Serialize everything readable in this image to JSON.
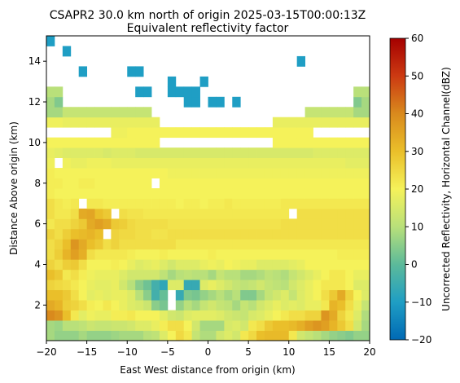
{
  "chart_data": {
    "type": "heatmap",
    "title": "CSAPR2 30.0 km north of origin 2025-03-15T00:00:13Z",
    "subtitle": "Equivalent reflectivity factor",
    "xlabel": "East West distance from origin (km)",
    "ylabel": "Distance Above origin (km)",
    "xlim": [
      -20,
      20
    ],
    "ylim": [
      0.25,
      15.25
    ],
    "xticks": [
      -20,
      -15,
      -10,
      -5,
      0,
      5,
      10,
      15,
      20
    ],
    "yticks": [
      2,
      4,
      6,
      8,
      10,
      12,
      14
    ],
    "grid": false,
    "colorbar": {
      "label": "Uncorrected Reflectivity, Horizontal Channel(dBZ)",
      "range": [
        -20,
        60
      ],
      "ticks": [
        -20,
        -10,
        0,
        10,
        20,
        30,
        40,
        50,
        60
      ],
      "colormap": "HomeyerRainbow"
    },
    "x_cell_km": 1,
    "y_levels_km": [
      0.5,
      1,
      1.5,
      2,
      2.5,
      3,
      3.5,
      4,
      4.5,
      5,
      5.5,
      6,
      6.5,
      7,
      7.5,
      8,
      8.5,
      9,
      9.5,
      10,
      10.5,
      11,
      11.5,
      12,
      12.5,
      13,
      13.5,
      14,
      14.5,
      15
    ],
    "columns_x_km": [
      -19.5,
      -18.5,
      -17.5,
      -16.5,
      -15.5,
      -14.5,
      -13.5,
      -12.5,
      -11.5,
      -10.5,
      -9.5,
      -8.5,
      -7.5,
      -6.5,
      -5.5,
      -4.5,
      -3.5,
      -2.5,
      -1.5,
      -0.5,
      0.5,
      1.5,
      2.5,
      3.5,
      4.5,
      5.5,
      6.5,
      7.5,
      8.5,
      9.5,
      10.5,
      11.5,
      12.5,
      13.5,
      14.5,
      15.5,
      16.5,
      17.5,
      18.5,
      19.5
    ],
    "reflectivity_dbz_by_height": [
      [
        8,
        6,
        6,
        6,
        8,
        6,
        6,
        6,
        7,
        8,
        8,
        8,
        10,
        11,
        16,
        20,
        25,
        22,
        12,
        9,
        9,
        14,
        16,
        14,
        22,
        25,
        30,
        31,
        31,
        31,
        22,
        14,
        12,
        10,
        8,
        6,
        5,
        4,
        6,
        6
      ],
      [
        8,
        7,
        10,
        10,
        11,
        13,
        12,
        12,
        13,
        13,
        14,
        16,
        16,
        18,
        21,
        24,
        24,
        20,
        14,
        8,
        8,
        8,
        15,
        16,
        14,
        22,
        24,
        28,
        30,
        30,
        31,
        33,
        36,
        38,
        36,
        32,
        28,
        24,
        14,
        8
      ],
      [
        40,
        38,
        30,
        22,
        17,
        19,
        18,
        18,
        21,
        21,
        22,
        20,
        20,
        20,
        17,
        14,
        13,
        16,
        17,
        17,
        17,
        16,
        14,
        13,
        12,
        15,
        16,
        18,
        20,
        22,
        24,
        24,
        26,
        26,
        38,
        34,
        26,
        22,
        16,
        9
      ],
      [
        34,
        32,
        27,
        26,
        24,
        21,
        20,
        22,
        20,
        18,
        16,
        15,
        13,
        5,
        3,
        null,
        6,
        10,
        8,
        12,
        14,
        12,
        11,
        8,
        12,
        10,
        14,
        16,
        18,
        16,
        17,
        16,
        18,
        18,
        22,
        32,
        30,
        24,
        18,
        12
      ],
      [
        30,
        30,
        28,
        24,
        20,
        17,
        18,
        17,
        18,
        18,
        16,
        10,
        5,
        -4,
        1,
        null,
        -6,
        4,
        3,
        6,
        8,
        10,
        8,
        10,
        4,
        4,
        8,
        12,
        14,
        16,
        12,
        16,
        18,
        20,
        24,
        28,
        34,
        26,
        20,
        16
      ],
      [
        26,
        25,
        24,
        22,
        20,
        18,
        17,
        17,
        18,
        14,
        10,
        5,
        2,
        -4,
        -7,
        16,
        16,
        -6,
        -6,
        16,
        18,
        16,
        14,
        12,
        11,
        12,
        14,
        12,
        11,
        10,
        14,
        16,
        18,
        20,
        22,
        22,
        22,
        20,
        16,
        16
      ],
      [
        30,
        28,
        22,
        24,
        21,
        19,
        18,
        18,
        18,
        16,
        14,
        14,
        14,
        14,
        11,
        8,
        10,
        11,
        10,
        10,
        8,
        12,
        10,
        10,
        8,
        8,
        9,
        11,
        10,
        9,
        12,
        14,
        16,
        18,
        20,
        22,
        22,
        20,
        18,
        18
      ],
      [
        26,
        24,
        27,
        28,
        24,
        20,
        20,
        20,
        21,
        20,
        18,
        16,
        17,
        18,
        16,
        14,
        16,
        16,
        16,
        18,
        19,
        18,
        20,
        19,
        18,
        18,
        16,
        16,
        16,
        16,
        17,
        18,
        20,
        20,
        20,
        20,
        20,
        20,
        20,
        20
      ],
      [
        24,
        27,
        32,
        36,
        33,
        24,
        22,
        22,
        22,
        22,
        21,
        20,
        20,
        20,
        21,
        20,
        20,
        20,
        20,
        20,
        21,
        20,
        20,
        20,
        20,
        20,
        20,
        20,
        20,
        20,
        20,
        20,
        20,
        20,
        20,
        20,
        21,
        21,
        21,
        21
      ],
      [
        24,
        26,
        30,
        38,
        34,
        30,
        28,
        24,
        26,
        24,
        24,
        24,
        24,
        24,
        24,
        24,
        22,
        22,
        22,
        22,
        22,
        22,
        22,
        22,
        22,
        22,
        22,
        22,
        22,
        22,
        22,
        22,
        22,
        22,
        22,
        22,
        22,
        22,
        22,
        22
      ],
      [
        26,
        24,
        27,
        30,
        31,
        32,
        30,
        null,
        26,
        25,
        25,
        24,
        24,
        23,
        23,
        24,
        24,
        24,
        24,
        24,
        24,
        24,
        24,
        24,
        24,
        24,
        24,
        24,
        24,
        24,
        24,
        24,
        24,
        24,
        24,
        24,
        24,
        24,
        24,
        24
      ],
      [
        22,
        24,
        24,
        26,
        28,
        34,
        36,
        34,
        28,
        27,
        25,
        24,
        24,
        24,
        24,
        23,
        23,
        23,
        23,
        23,
        23,
        23,
        23,
        23,
        23,
        23,
        23,
        23,
        23,
        24,
        24,
        24,
        24,
        24,
        24,
        24,
        24,
        24,
        24,
        24
      ],
      [
        24,
        22,
        22,
        24,
        34,
        35,
        30,
        28,
        null,
        24,
        23,
        23,
        22,
        22,
        22,
        22,
        22,
        22,
        22,
        22,
        22,
        22,
        22,
        22,
        22,
        22,
        22,
        22,
        22,
        22,
        null,
        24,
        24,
        24,
        24,
        24,
        24,
        24,
        24,
        24
      ],
      [
        24,
        22,
        21,
        22,
        null,
        22,
        22,
        21,
        21,
        21,
        21,
        21,
        21,
        21,
        21,
        21,
        20,
        21,
        21,
        20,
        21,
        21,
        22,
        21,
        21,
        21,
        21,
        21,
        21,
        22,
        22,
        22,
        22,
        22,
        22,
        22,
        22,
        22,
        22,
        22
      ],
      [
        21,
        20,
        20,
        20,
        20,
        20,
        20,
        20,
        20,
        20,
        20,
        20,
        20,
        20,
        20,
        20,
        20,
        20,
        20,
        20,
        20,
        20,
        20,
        20,
        20,
        20,
        20,
        20,
        20,
        20,
        20,
        20,
        20,
        20,
        20,
        20,
        20,
        20,
        20,
        20
      ],
      [
        21,
        21,
        20,
        20,
        21,
        21,
        20,
        20,
        20,
        20,
        20,
        20,
        20,
        null,
        20,
        20,
        20,
        20,
        20,
        20,
        20,
        20,
        20,
        20,
        20,
        20,
        20,
        20,
        20,
        20,
        20,
        20,
        20,
        20,
        20,
        20,
        20,
        20,
        20,
        20
      ],
      [
        21,
        20,
        20,
        20,
        20,
        20,
        20,
        20,
        20,
        20,
        20,
        20,
        20,
        20,
        20,
        19,
        19,
        19,
        19,
        19,
        19,
        19,
        19,
        19,
        19,
        19,
        19,
        19,
        19,
        19,
        19,
        19,
        19,
        19,
        19,
        19,
        19,
        19,
        19,
        19
      ],
      [
        19,
        null,
        19,
        18,
        18,
        19,
        19,
        19,
        18,
        18,
        18,
        18,
        18,
        18,
        18,
        18,
        18,
        18,
        18,
        18,
        18,
        18,
        18,
        18,
        18,
        18,
        18,
        18,
        18,
        18,
        18,
        18,
        18,
        18,
        18,
        18,
        18,
        17,
        17,
        17
      ],
      [
        18,
        17,
        16,
        16,
        16,
        16,
        16,
        15,
        16,
        16,
        16,
        15,
        15,
        15,
        15,
        15,
        15,
        15,
        15,
        15,
        15,
        15,
        15,
        15,
        15,
        15,
        15,
        15,
        15,
        15,
        15,
        15,
        15,
        16,
        16,
        16,
        16,
        16,
        16,
        16
      ],
      [
        20,
        20,
        20,
        20,
        20,
        20,
        20,
        20,
        20,
        20,
        20,
        20,
        20,
        20,
        null,
        null,
        null,
        null,
        null,
        null,
        null,
        null,
        null,
        null,
        null,
        null,
        null,
        null,
        20,
        20,
        20,
        20,
        20,
        20,
        20,
        20,
        20,
        20,
        20,
        20
      ],
      [
        null,
        null,
        null,
        null,
        null,
        null,
        null,
        null,
        19,
        19,
        20,
        20,
        20,
        20,
        20,
        20,
        20,
        20,
        20,
        20,
        20,
        20,
        20,
        20,
        20,
        20,
        20,
        20,
        20,
        20,
        20,
        20,
        20,
        null,
        null,
        null,
        null,
        null,
        null,
        null
      ],
      [
        19,
        19,
        18,
        18,
        18,
        18,
        18,
        18,
        18,
        18,
        18,
        18,
        18,
        18,
        null,
        null,
        null,
        null,
        null,
        null,
        null,
        null,
        null,
        null,
        null,
        null,
        null,
        null,
        18,
        18,
        18,
        18,
        18,
        18,
        18,
        18,
        18,
        18,
        18,
        18
      ],
      [
        8,
        8,
        12,
        12,
        12,
        12,
        12,
        12,
        12,
        12,
        12,
        12,
        12,
        null,
        null,
        null,
        null,
        null,
        null,
        null,
        null,
        null,
        null,
        null,
        null,
        null,
        null,
        null,
        null,
        null,
        null,
        null,
        12,
        12,
        12,
        12,
        12,
        12,
        8,
        8
      ],
      [
        8,
        4,
        null,
        null,
        null,
        null,
        null,
        null,
        null,
        null,
        null,
        null,
        null,
        null,
        null,
        null,
        null,
        -10,
        -10,
        null,
        -10,
        -10,
        null,
        -10,
        null,
        null,
        null,
        null,
        null,
        null,
        null,
        null,
        null,
        null,
        null,
        null,
        null,
        null,
        4,
        8
      ],
      [
        10,
        10,
        null,
        null,
        null,
        null,
        null,
        null,
        null,
        null,
        null,
        -10,
        -10,
        null,
        null,
        -10,
        -10,
        -10,
        -10,
        null,
        null,
        null,
        null,
        null,
        null,
        null,
        null,
        null,
        null,
        null,
        null,
        null,
        null,
        null,
        null,
        null,
        null,
        null,
        10,
        10
      ],
      [
        null,
        null,
        null,
        null,
        null,
        null,
        null,
        null,
        null,
        null,
        null,
        null,
        null,
        null,
        null,
        -10,
        null,
        null,
        null,
        -10,
        null,
        null,
        null,
        null,
        null,
        null,
        null,
        null,
        null,
        null,
        null,
        null,
        null,
        null,
        null,
        null,
        null,
        null,
        null,
        null
      ],
      [
        null,
        null,
        null,
        null,
        -10,
        null,
        null,
        null,
        null,
        null,
        -10,
        -10,
        null,
        null,
        null,
        null,
        null,
        null,
        null,
        null,
        null,
        null,
        null,
        null,
        null,
        null,
        null,
        null,
        null,
        null,
        null,
        null,
        null,
        null,
        null,
        null,
        null,
        null,
        null,
        null
      ],
      [
        null,
        null,
        null,
        null,
        null,
        null,
        null,
        null,
        null,
        null,
        null,
        null,
        null,
        null,
        null,
        null,
        null,
        null,
        null,
        null,
        null,
        null,
        null,
        null,
        null,
        null,
        null,
        null,
        null,
        null,
        null,
        -10,
        null,
        null,
        null,
        null,
        null,
        null,
        null,
        null
      ],
      [
        null,
        null,
        -10,
        null,
        null,
        null,
        null,
        null,
        null,
        null,
        null,
        null,
        null,
        null,
        null,
        null,
        null,
        null,
        null,
        null,
        null,
        null,
        null,
        null,
        null,
        null,
        null,
        null,
        null,
        null,
        null,
        null,
        null,
        null,
        null,
        null,
        null,
        null,
        null,
        null
      ],
      [
        -10,
        null,
        null,
        null,
        null,
        null,
        null,
        null,
        null,
        null,
        null,
        null,
        null,
        null,
        null,
        null,
        null,
        null,
        null,
        null,
        null,
        null,
        null,
        null,
        null,
        null,
        null,
        null,
        null,
        null,
        null,
        null,
        null,
        null,
        null,
        null,
        null,
        null,
        null,
        null
      ]
    ]
  }
}
